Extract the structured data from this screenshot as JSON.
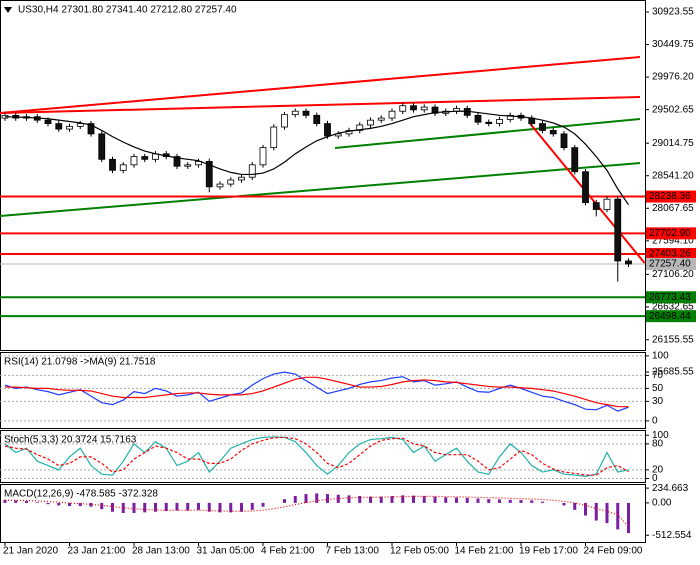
{
  "chart_data": [
    {
      "type": "candlestick",
      "title": "US30,H4  27301.80 27341.40 27212.80 27257.40",
      "categories": [
        "21 Jan 2020",
        null,
        null,
        null,
        null,
        null,
        "23 Jan 21:00",
        null,
        null,
        null,
        null,
        null,
        "28 Jan 13:00",
        null,
        null,
        null,
        null,
        null,
        "31 Jan 05:00",
        null,
        null,
        null,
        null,
        null,
        "4 Feb 21:00",
        null,
        null,
        null,
        null,
        null,
        "7 Feb 13:00",
        null,
        null,
        null,
        null,
        null,
        "12 Feb 05:00",
        null,
        null,
        null,
        null,
        null,
        "14 Feb 21:00",
        null,
        null,
        null,
        null,
        null,
        "19 Feb 17:00",
        null,
        null,
        null,
        null,
        null,
        "24 Feb 09:00",
        null,
        null,
        null,
        null
      ],
      "open": [
        29380,
        29420,
        29380,
        29400,
        29350,
        29300,
        29220,
        29260,
        29300,
        29150,
        28780,
        28620,
        28700,
        28820,
        28780,
        28860,
        28820,
        28680,
        28700,
        28750,
        28380,
        28420,
        28480,
        28520,
        28700,
        28950,
        29250,
        29430,
        29480,
        29420,
        29300,
        29120,
        29150,
        29200,
        29280,
        29350,
        29380,
        29480,
        29560,
        29500,
        29540,
        29450,
        29480,
        29520,
        29420,
        29320,
        29300,
        29360,
        29420,
        29380,
        29300,
        29200,
        29150,
        28950,
        28600,
        28150,
        28050,
        28200,
        27301.8
      ],
      "high": [
        29460,
        29460,
        29440,
        29440,
        29390,
        29340,
        29300,
        29340,
        29340,
        29190,
        28820,
        28740,
        28860,
        28860,
        28900,
        28900,
        28860,
        28740,
        28790,
        28790,
        28460,
        28520,
        28560,
        28740,
        28990,
        29290,
        29470,
        29520,
        29520,
        29460,
        29340,
        29190,
        29240,
        29320,
        29390,
        29420,
        29520,
        29600,
        29600,
        29580,
        29580,
        29520,
        29560,
        29560,
        29460,
        29360,
        29400,
        29460,
        29460,
        29420,
        29340,
        29240,
        29190,
        28990,
        28640,
        28190,
        28240,
        28250,
        27341.4
      ],
      "low": [
        29340,
        29340,
        29340,
        29310,
        29260,
        29180,
        29180,
        29220,
        29110,
        28740,
        28580,
        28580,
        28660,
        28740,
        28740,
        28780,
        28640,
        28640,
        28660,
        28300,
        28340,
        28380,
        28440,
        28480,
        28660,
        28910,
        29210,
        29390,
        29380,
        29260,
        29080,
        29080,
        29110,
        29160,
        29240,
        29310,
        29340,
        29440,
        29460,
        29460,
        29410,
        29410,
        29440,
        29380,
        29280,
        29260,
        29260,
        29320,
        29340,
        29260,
        29160,
        29110,
        28910,
        28560,
        28110,
        27950,
        28010,
        27000,
        27212.8
      ],
      "close": [
        29420,
        29380,
        29400,
        29350,
        29300,
        29220,
        29260,
        29300,
        29150,
        28780,
        28620,
        28700,
        28820,
        28780,
        28860,
        28820,
        28680,
        28700,
        28750,
        28380,
        28420,
        28480,
        28520,
        28700,
        28950,
        29250,
        29430,
        29480,
        29420,
        29300,
        29120,
        29150,
        29200,
        29280,
        29350,
        29380,
        29480,
        29560,
        29500,
        29540,
        29450,
        29480,
        29520,
        29420,
        29320,
        29300,
        29360,
        29420,
        29380,
        29300,
        29200,
        29150,
        28950,
        28600,
        28150,
        28050,
        28200,
        27301.8,
        27257.4
      ],
      "up_color": "#ffffff",
      "down_color": "#111111",
      "series": [
        {
          "color": "#000000",
          "style": "solid",
          "values": [
            29400,
            29395,
            29390,
            29380,
            29370,
            29350,
            29330,
            29310,
            29280,
            29200,
            29110,
            29030,
            28960,
            28900,
            28860,
            28830,
            28800,
            28780,
            28760,
            28700,
            28640,
            28590,
            28560,
            28560,
            28580,
            28640,
            28740,
            28860,
            28960,
            29050,
            29110,
            29160,
            29190,
            29210,
            29230,
            29260,
            29300,
            29350,
            29400,
            29430,
            29460,
            29470,
            29480,
            29480,
            29460,
            29440,
            29420,
            29410,
            29400,
            29380,
            29350,
            29310,
            29250,
            29150,
            29000,
            28820,
            28620,
            28350,
            28120
          ]
        }
      ],
      "ylim": [
        26006,
        31098
      ],
      "yticks": [
        30923.55,
        30449.75,
        {
          "value": 29976.2,
          "label": "29976.20"
        },
        29502.65,
        29014.75,
        {
          "value": 28541.2,
          "label": "28541.20"
        },
        28067.65,
        {
          "value": 27594.1,
          "label": "27594.10"
        },
        {
          "value": 27106.2,
          "label": "27106.20"
        },
        26632.65,
        26155.55,
        25685.55
      ],
      "grid": false,
      "levels": [
        {
          "value": 28238.36,
          "label": "28238.36",
          "color": "#ff0000",
          "line_width": 2
        },
        {
          "value": 27702.9,
          "label": "27702.90",
          "color": "#ff0000",
          "line_width": 2
        },
        {
          "value": 27403.26,
          "label": "27403.26",
          "color": "#ff0000",
          "line_width": 2
        },
        {
          "value": 27257.4,
          "label": "27257.40",
          "color": "#b8b8b8",
          "line_width": 1
        },
        {
          "value": 26773.43,
          "label": "26773.43",
          "color": "#008000",
          "line_width": 2
        },
        {
          "value": 26498.44,
          "label": "26498.44",
          "color": "#008000",
          "line_width": 2
        }
      ],
      "trendlines": [
        {
          "color": "#ff0000",
          "x": [
            -0.47,
            59.07
          ],
          "y": [
            29454,
            30269
          ]
        },
        {
          "color": "#ff0000",
          "x": [
            -0.47,
            59.07
          ],
          "y": [
            29454,
            29687
          ]
        },
        {
          "color": "#008000",
          "x": [
            30.7,
            59.07
          ],
          "y": [
            28945,
            29367
          ]
        },
        {
          "color": "#008000",
          "x": [
            -0.47,
            59.07
          ],
          "y": [
            27955,
            28726
          ]
        },
        {
          "color": "#ff0000",
          "x": [
            48.8,
            59.5
          ],
          "y": [
            29308,
            27271
          ]
        }
      ]
    },
    {
      "type": "line",
      "title": "RSI(14) 21.0798 ->MA(9) 21.7518",
      "ylim": [
        -11,
        106
      ],
      "yticks": [
        100,
        70,
        50,
        30,
        0
      ],
      "grid": true,
      "series": [
        {
          "color": "#1e3cff",
          "style": "solid",
          "values": [
            55,
            50,
            52,
            48,
            45,
            40,
            44,
            48,
            38,
            28,
            25,
            32,
            45,
            42,
            50,
            46,
            38,
            40,
            44,
            30,
            35,
            40,
            43,
            55,
            65,
            72,
            75,
            72,
            62,
            52,
            42,
            46,
            50,
            56,
            60,
            62,
            66,
            68,
            60,
            62,
            55,
            57,
            60,
            52,
            45,
            44,
            50,
            55,
            50,
            44,
            38,
            36,
            30,
            25,
            18,
            17,
            24,
            15,
            21.0798
          ]
        },
        {
          "color": "#ff0000",
          "style": "solid",
          "values": [
            52,
            52,
            51,
            50,
            50,
            48,
            47,
            47,
            46,
            42,
            38,
            36,
            36,
            36,
            38,
            40,
            42,
            43,
            43,
            41,
            40,
            40,
            40,
            42,
            46,
            52,
            58,
            64,
            67,
            67,
            64,
            60,
            56,
            52,
            52,
            53,
            56,
            60,
            62,
            63,
            62,
            60,
            59,
            57,
            55,
            53,
            52,
            52,
            51,
            50,
            48,
            46,
            42,
            38,
            33,
            28,
            25,
            22,
            21.7518
          ]
        }
      ]
    },
    {
      "type": "line",
      "title": "Stoch(5,3,3) 20.3724 15.7163",
      "ylim": [
        -8,
        112
      ],
      "yticks": [
        100,
        80,
        20,
        0
      ],
      "grid": true,
      "series": [
        {
          "color": "#20b2aa",
          "style": "solid",
          "values": [
            80,
            60,
            70,
            40,
            30,
            20,
            50,
            70,
            30,
            10,
            8,
            40,
            80,
            60,
            85,
            70,
            30,
            40,
            60,
            15,
            40,
            70,
            80,
            90,
            95,
            96,
            95,
            85,
            60,
            30,
            10,
            30,
            60,
            80,
            90,
            92,
            95,
            90,
            60,
            75,
            40,
            55,
            70,
            40,
            15,
            10,
            50,
            80,
            60,
            30,
            15,
            20,
            10,
            8,
            5,
            10,
            60,
            15,
            20.3724
          ]
        },
        {
          "color": "#ff0000",
          "style": "dashed",
          "values": [
            75,
            70,
            68,
            55,
            45,
            30,
            35,
            50,
            50,
            35,
            15,
            20,
            45,
            60,
            75,
            70,
            60,
            45,
            45,
            35,
            35,
            45,
            65,
            80,
            88,
            94,
            95,
            92,
            80,
            60,
            35,
            25,
            35,
            55,
            75,
            88,
            92,
            93,
            80,
            75,
            60,
            55,
            55,
            55,
            40,
            20,
            25,
            45,
            65,
            55,
            35,
            22,
            15,
            12,
            8,
            8,
            25,
            30,
            15.7163
          ]
        }
      ]
    },
    {
      "type": "macd",
      "title": "MACD(12,26,9) -478.585 -372.328",
      "ylim": [
        -620,
        300
      ],
      "yticks": [
        234.663,
        {
          "value": 0,
          "label": "0.00"
        },
        -512.554
      ],
      "grid": false,
      "series": [
        {
          "color": "#7a1fa2",
          "style": "bar",
          "values": [
            50,
            40,
            30,
            10,
            -20,
            -40,
            -50,
            -50,
            -60,
            -100,
            -140,
            -160,
            -160,
            -150,
            -140,
            -130,
            -120,
            -120,
            -110,
            -140,
            -150,
            -150,
            -140,
            -110,
            -60,
            0,
            60,
            110,
            140,
            150,
            140,
            130,
            120,
            110,
            100,
            100,
            110,
            120,
            115,
            110,
            100,
            90,
            85,
            80,
            70,
            60,
            55,
            50,
            45,
            40,
            20,
            0,
            -40,
            -110,
            -200,
            -280,
            -320,
            -420,
            -478.585
          ]
        },
        {
          "color": "#ff0000",
          "style": "dotted",
          "values": [
            40,
            40,
            38,
            32,
            22,
            10,
            -2,
            -12,
            -22,
            -38,
            -58,
            -78,
            -94,
            -105,
            -112,
            -116,
            -117,
            -118,
            -116,
            -121,
            -127,
            -131,
            -133,
            -128,
            -115,
            -92,
            -62,
            -28,
            6,
            35,
            56,
            70,
            80,
            86,
            89,
            91,
            95,
            100,
            103,
            104,
            103,
            100,
            97,
            93,
            88,
            82,
            77,
            72,
            67,
            62,
            54,
            43,
            27,
            0,
            -40,
            -88,
            -134,
            -191,
            -372.328
          ]
        }
      ]
    }
  ]
}
